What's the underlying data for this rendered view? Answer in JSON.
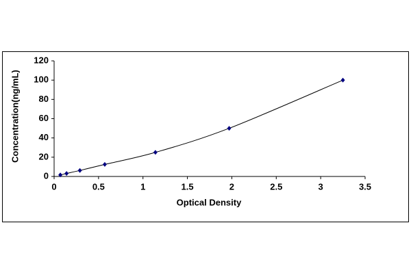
{
  "chart_data": {
    "type": "scatter",
    "x_label": "Optical Density",
    "y_label": "Concentration(ng/mL)",
    "series": [
      {
        "color": "#000080",
        "line_color": "#000000",
        "x": [
          0.07,
          0.14,
          0.29,
          0.57,
          1.14,
          1.97,
          3.25
        ],
        "values": [
          1.56,
          3.12,
          6.25,
          12.5,
          25,
          50,
          100
        ]
      }
    ],
    "xlim": [
      0,
      3.5
    ],
    "xticks": [
      0,
      0.5,
      1,
      1.5,
      2,
      2.5,
      3,
      3.5
    ],
    "ylim": [
      0,
      120
    ],
    "yticks": [
      0,
      20,
      40,
      60,
      80,
      100,
      120
    ],
    "grid": false
  }
}
